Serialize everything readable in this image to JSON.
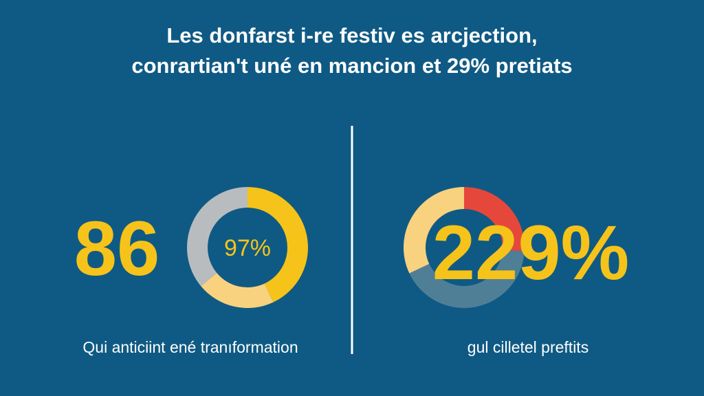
{
  "header": {
    "title_lines": [
      "Les donfarst i-re festiv es arcjection,",
      "conrartian't uné en mancion et 29% pretiats"
    ]
  },
  "chart_data": [
    {
      "type": "donut",
      "big_text": "86",
      "center_label": "97%",
      "caption": "Qui anticiint ené tranıformation",
      "values": [
        43,
        21,
        36
      ],
      "colors": [
        "#f6c31a",
        "#f8d27e",
        "#b9bcbe"
      ]
    },
    {
      "type": "donut",
      "big_text": "229%",
      "caption": "gul cilletel preftits",
      "values": [
        26,
        42,
        32
      ],
      "colors": [
        "#e5483a",
        "#4f7f97",
        "#f8d27e"
      ]
    }
  ]
}
